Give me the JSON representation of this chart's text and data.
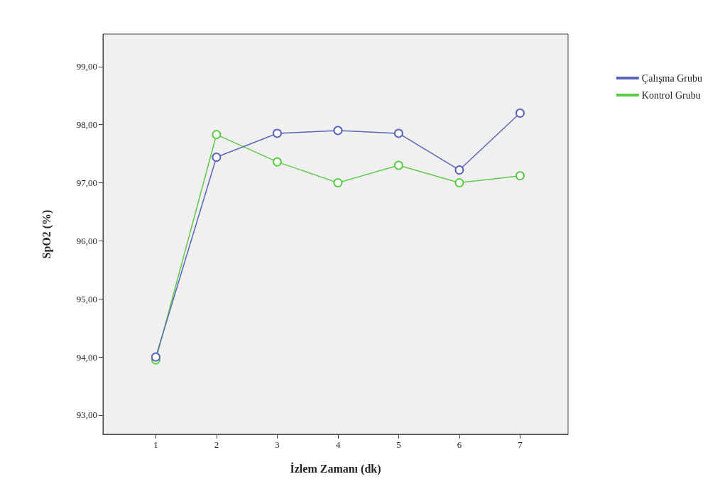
{
  "chart_data": {
    "type": "line",
    "xlabel": "İzlem Zamanı (dk)",
    "ylabel": "SpO2 (%)",
    "x": [
      1,
      2,
      3,
      4,
      5,
      6,
      7
    ],
    "series": [
      {
        "name": "Çalışma Grubu",
        "color": "#5b66b8",
        "values": [
          94.0,
          97.44,
          97.85,
          97.9,
          97.85,
          97.22,
          98.2
        ]
      },
      {
        "name": "Kontrol Grubu",
        "color": "#5ccc48",
        "values": [
          93.95,
          97.83,
          97.36,
          97.0,
          97.3,
          97.0,
          97.12
        ]
      }
    ],
    "xlim": [
      0.13,
      7.79
    ],
    "xticks": [
      1,
      2,
      3,
      4,
      5,
      6,
      7
    ],
    "ylim": [
      92.67,
      99.56
    ],
    "yticks": [
      {
        "value": 93,
        "label": "93,00"
      },
      {
        "value": 94,
        "label": "94,00"
      },
      {
        "value": 95,
        "label": "95,00"
      },
      {
        "value": 96,
        "label": "96,00"
      },
      {
        "value": 97,
        "label": "97,00"
      },
      {
        "value": 98,
        "label": "98,00"
      },
      {
        "value": 99,
        "label": "99,00"
      }
    ],
    "grid": false,
    "legend": "top right",
    "marker": "circle",
    "line_style": "solid"
  }
}
